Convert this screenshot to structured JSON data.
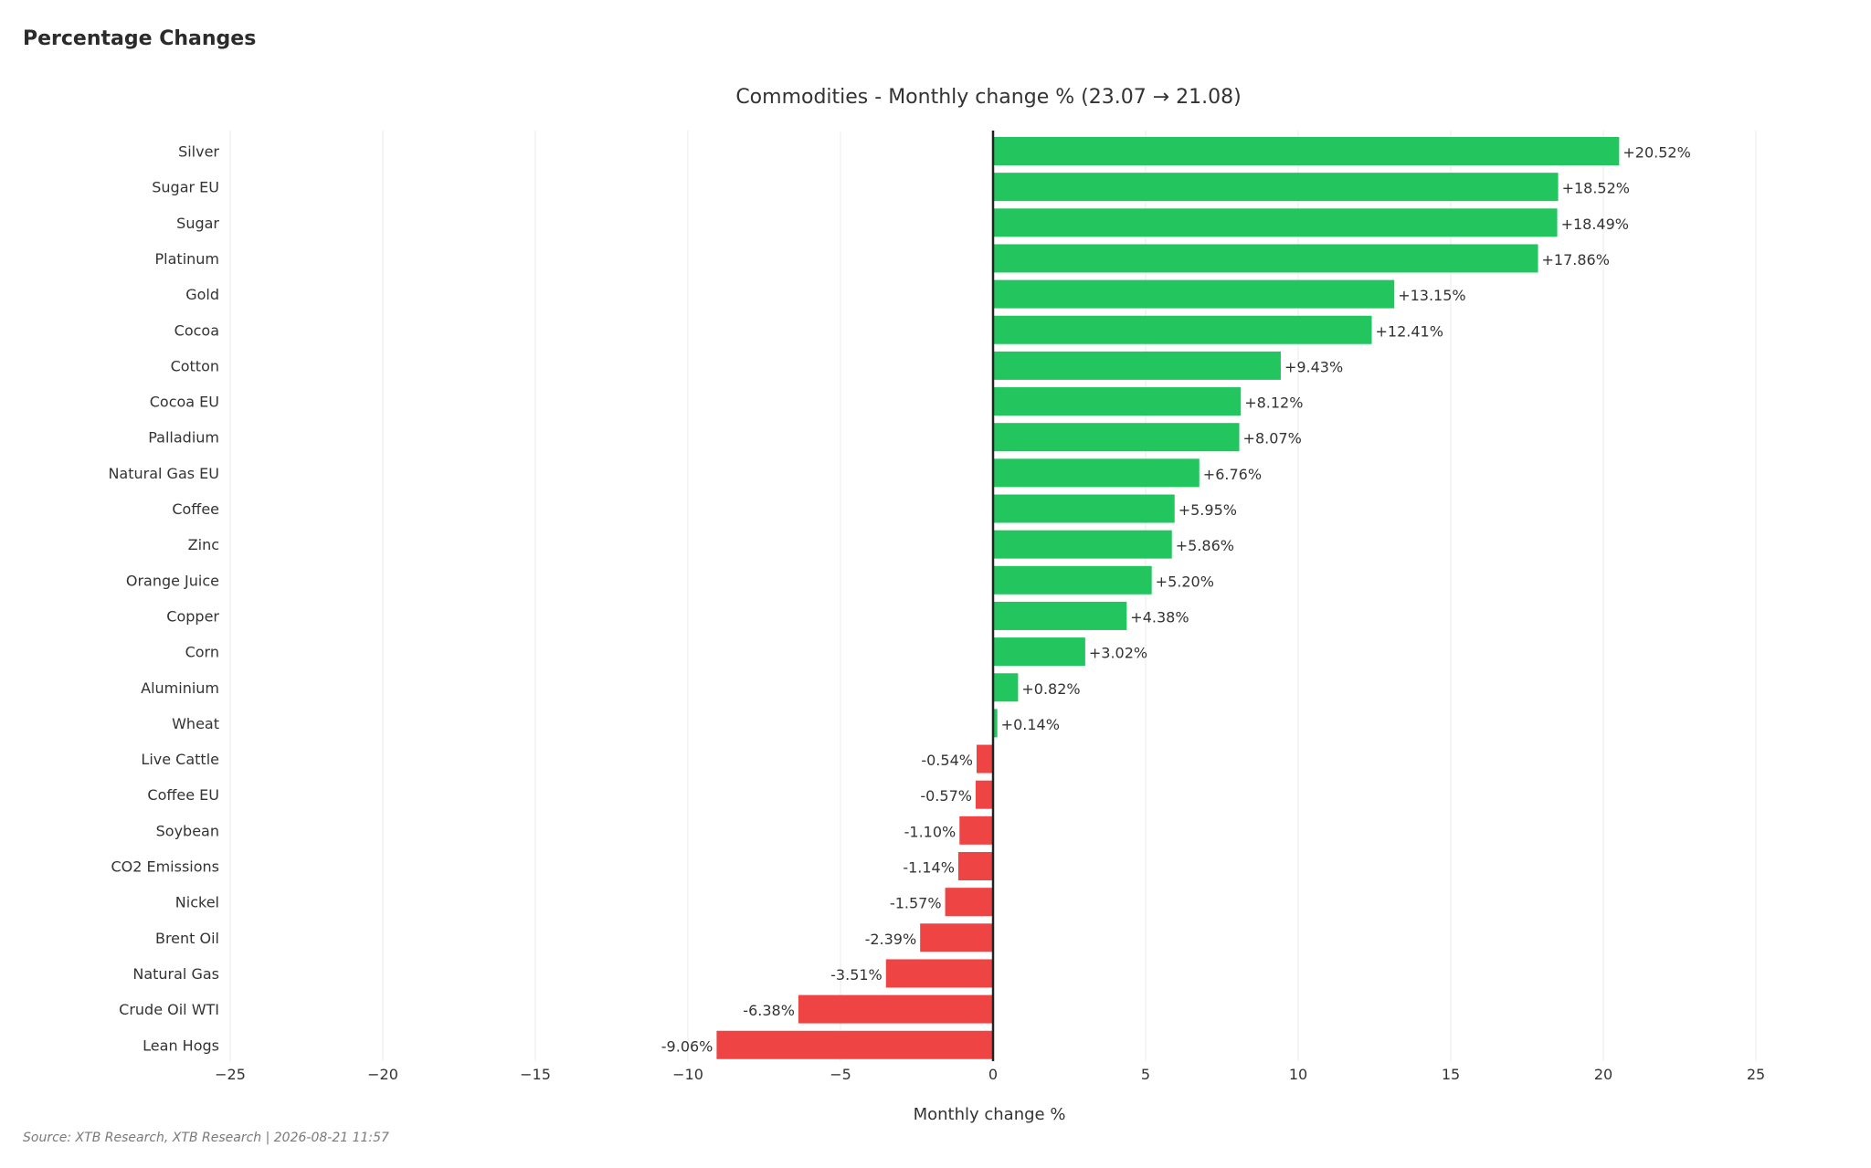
{
  "page": {
    "heading": "Percentage Changes",
    "source": "Source: XTB Research, XTB Research | 2026-08-21 11:57"
  },
  "chart_data": {
    "type": "bar",
    "orientation": "horizontal",
    "title": "Commodities - Monthly change % (23.07 → 21.08)",
    "xlabel": "Monthly change %",
    "ylabel": "",
    "xlim": [
      -25,
      25
    ],
    "xticks": [
      -25,
      -20,
      -15,
      -10,
      -5,
      0,
      5,
      10,
      15,
      20,
      25
    ],
    "xtick_labels": [
      "−25",
      "−20",
      "−15",
      "−10",
      "−5",
      "0",
      "5",
      "10",
      "15",
      "20",
      "25"
    ],
    "grid": true,
    "legend": "none",
    "colors": {
      "positive": "#22c55e",
      "negative": "#ef4444",
      "zero_line": "#222222",
      "grid": "#ebebeb"
    },
    "categories": [
      "Silver",
      "Sugar EU",
      "Sugar",
      "Platinum",
      "Gold",
      "Cocoa",
      "Cotton",
      "Cocoa EU",
      "Palladium",
      "Natural Gas EU",
      "Coffee",
      "Zinc",
      "Orange Juice",
      "Copper",
      "Corn",
      "Aluminium",
      "Wheat",
      "Live Cattle",
      "Coffee EU",
      "Soybean",
      "CO2 Emissions",
      "Nickel",
      "Brent Oil",
      "Natural Gas",
      "Crude Oil WTI",
      "Lean Hogs"
    ],
    "values": [
      20.52,
      18.52,
      18.49,
      17.86,
      13.15,
      12.41,
      9.43,
      8.12,
      8.07,
      6.76,
      5.95,
      5.86,
      5.2,
      4.38,
      3.02,
      0.82,
      0.14,
      -0.54,
      -0.57,
      -1.1,
      -1.14,
      -1.57,
      -2.39,
      -3.51,
      -6.38,
      -9.06
    ],
    "data_labels": [
      "+20.52%",
      "+18.52%",
      "+18.49%",
      "+17.86%",
      "+13.15%",
      "+12.41%",
      "+9.43%",
      "+8.12%",
      "+8.07%",
      "+6.76%",
      "+5.95%",
      "+5.86%",
      "+5.20%",
      "+4.38%",
      "+3.02%",
      "+0.82%",
      "+0.14%",
      "-0.54%",
      "-0.57%",
      "-1.10%",
      "-1.14%",
      "-1.57%",
      "-2.39%",
      "-3.51%",
      "-6.38%",
      "-9.06%"
    ]
  }
}
